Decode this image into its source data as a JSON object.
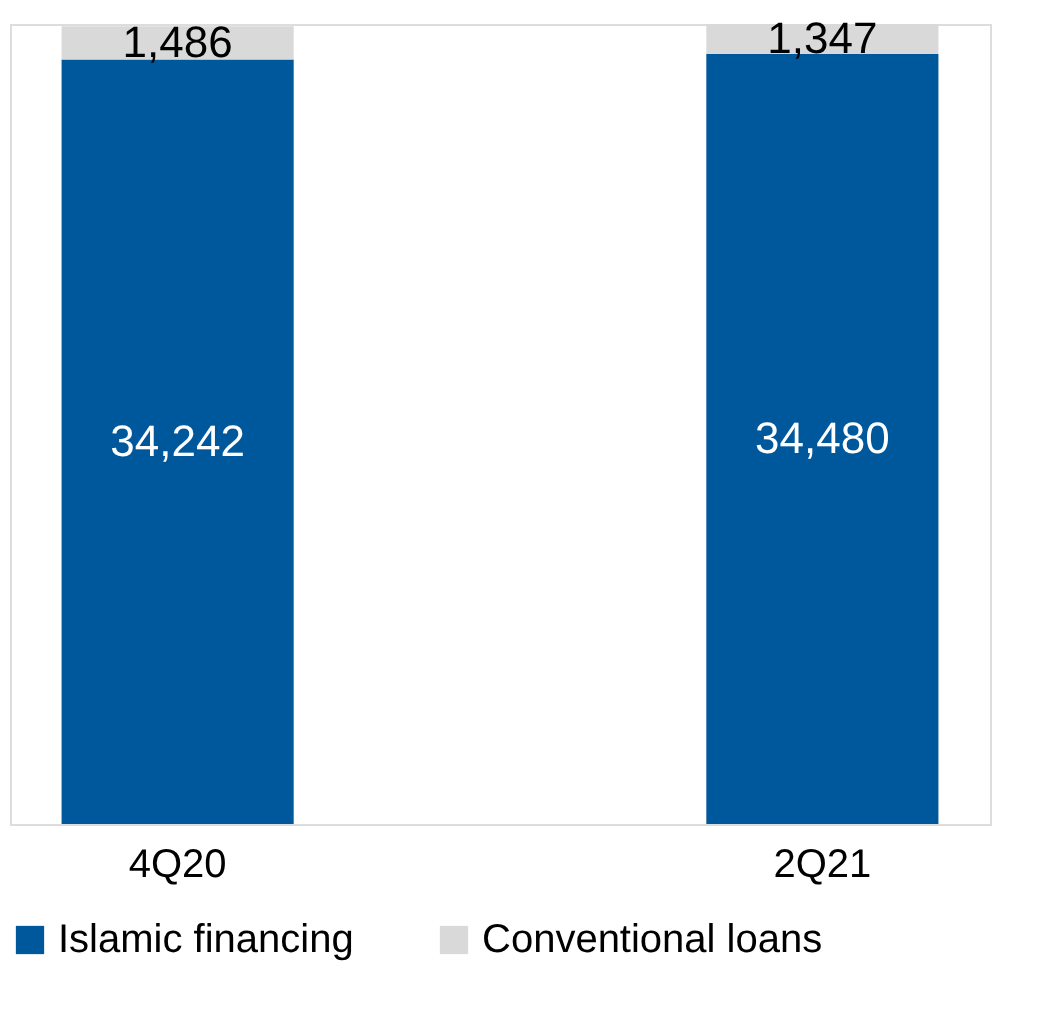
{
  "chart_data": {
    "type": "bar",
    "stacked": true,
    "legend": "bottom",
    "categories": [
      "4Q20",
      "2Q21"
    ],
    "series": [
      {
        "name": "Islamic financing",
        "color": "#00589c",
        "values": [
          34242,
          34480
        ],
        "value_labels": [
          "34,242",
          "34,480"
        ]
      },
      {
        "name": "Conventional loans",
        "color": "#d9d9d9",
        "values": [
          1486,
          1347
        ],
        "value_labels": [
          "1,486",
          "1,347"
        ]
      }
    ]
  }
}
